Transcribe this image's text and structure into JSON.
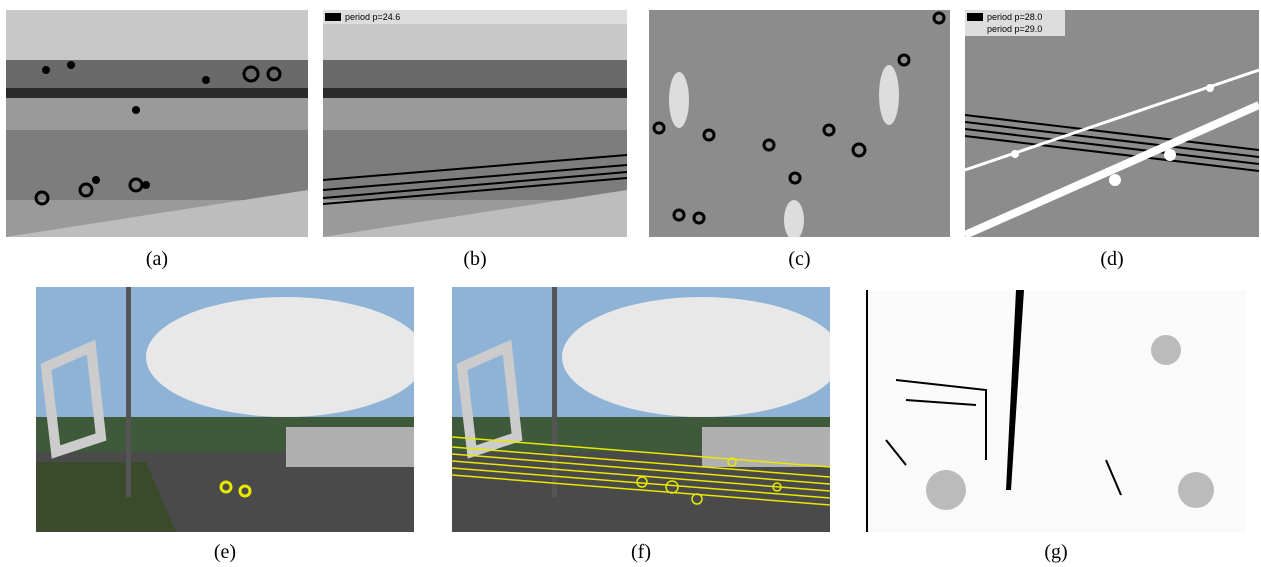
{
  "panels": [
    {
      "label": "(a)"
    },
    {
      "label": "(b)",
      "legend": [
        "period p=24.6"
      ]
    },
    {
      "label": "(c)"
    },
    {
      "label": "(d)",
      "legend": [
        "period p=28.0",
        "period p=29.0"
      ]
    },
    {
      "label": "(e)"
    },
    {
      "label": "(f)"
    },
    {
      "label": "(g)"
    }
  ]
}
